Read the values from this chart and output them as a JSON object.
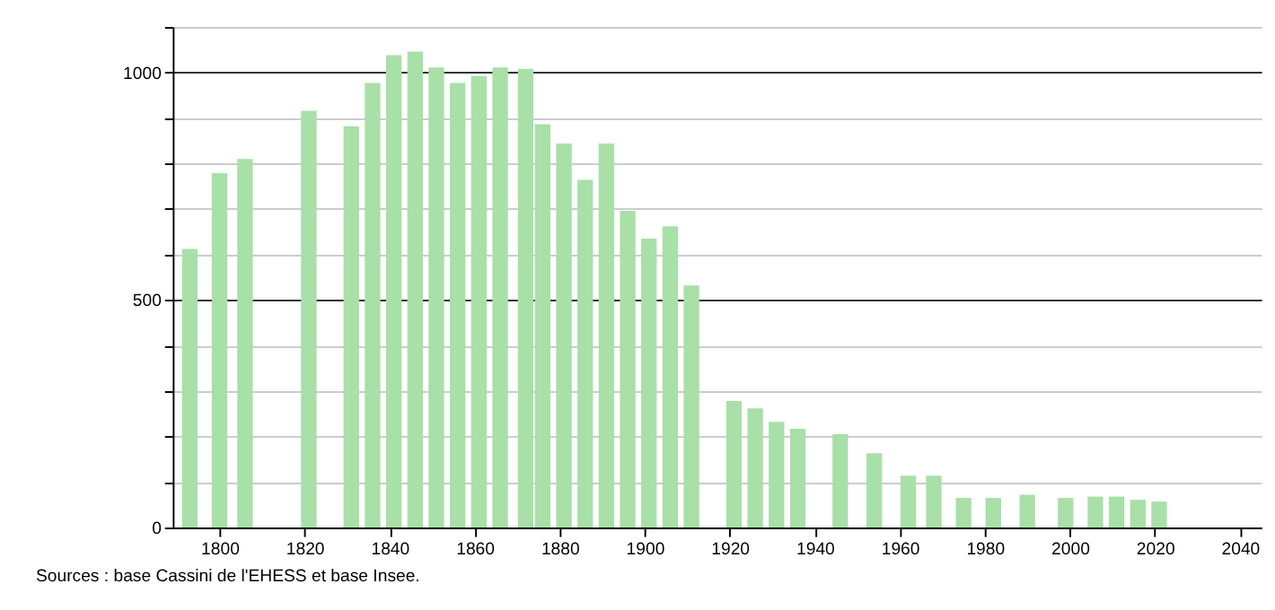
{
  "chart_data": {
    "type": "bar",
    "x": [
      1793,
      1800,
      1806,
      1821,
      1831,
      1836,
      1841,
      1846,
      1851,
      1856,
      1861,
      1866,
      1872,
      1876,
      1881,
      1886,
      1891,
      1896,
      1901,
      1906,
      1911,
      1921,
      1926,
      1931,
      1936,
      1946,
      1954,
      1962,
      1968,
      1975,
      1982,
      1990,
      1999,
      2006,
      2011,
      2016,
      2021
    ],
    "values": [
      612,
      779,
      810,
      916,
      882,
      977,
      1038,
      1046,
      1011,
      977,
      992,
      1011,
      1008,
      886,
      844,
      764,
      844,
      696,
      635,
      662,
      532,
      278,
      262,
      232,
      217,
      205,
      163,
      114,
      114,
      65,
      65,
      72,
      65,
      68,
      68,
      61,
      57
    ],
    "color": "#a8e0a8",
    "xlim": [
      1789,
      2045
    ],
    "xticks": [
      1800,
      1820,
      1840,
      1860,
      1880,
      1900,
      1920,
      1940,
      1960,
      1980,
      2000,
      2020,
      2040
    ],
    "ylim": [
      0,
      1100
    ],
    "yticks": [
      0,
      {
        "value": 100,
        "label": null
      },
      {
        "value": 200,
        "label": null
      },
      {
        "value": 300,
        "label": null
      },
      {
        "value": 400,
        "label": null
      },
      500,
      {
        "value": 600,
        "label": null
      },
      {
        "value": 700,
        "label": null
      },
      {
        "value": 800,
        "label": null
      },
      {
        "value": 900,
        "label": null
      },
      1000,
      {
        "value": 1100,
        "label": null
      }
    ],
    "grid": "y",
    "annotations": [
      "Sources : base Cassini de l'EHESS et base Insee."
    ]
  }
}
